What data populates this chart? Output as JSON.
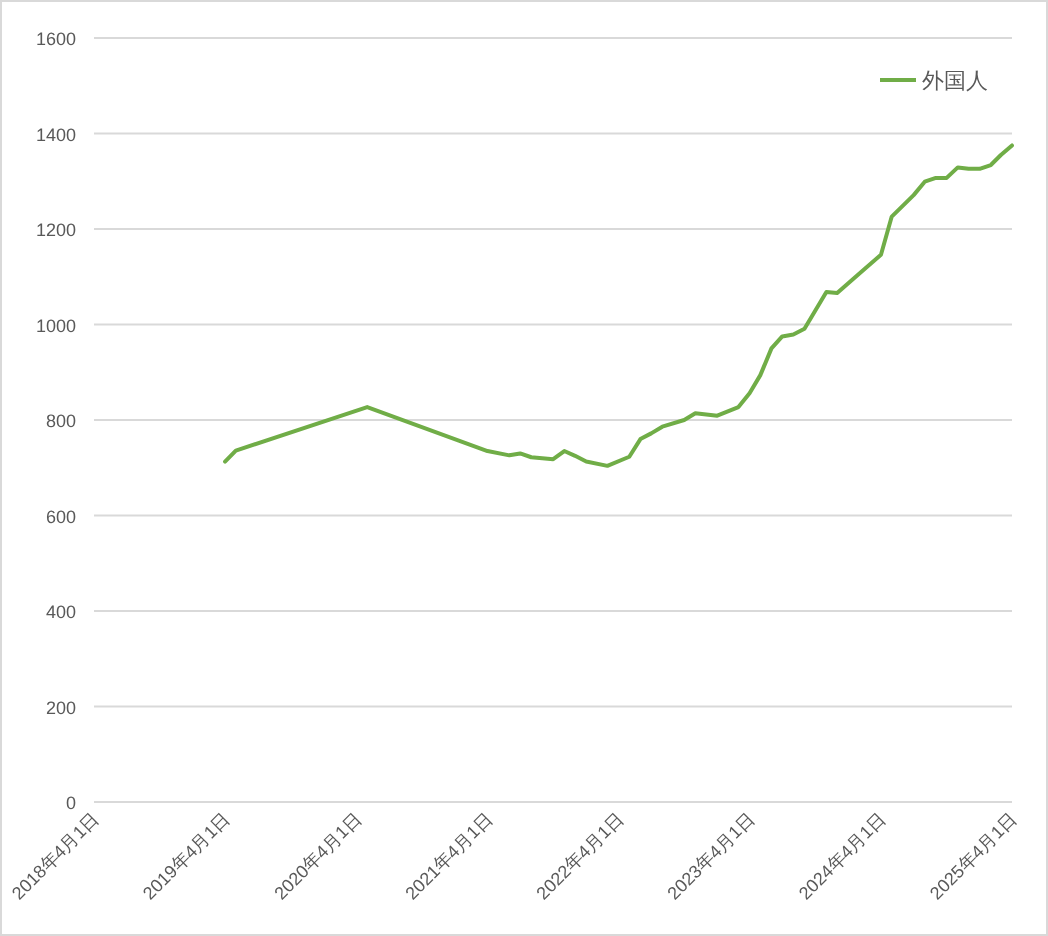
{
  "chart_data": {
    "type": "line",
    "grid": "y",
    "legend": "top right",
    "x": [
      "2019-04",
      "2019-05",
      "2020-05",
      "2021-04",
      "2021-06",
      "2021-07",
      "2021-08",
      "2021-10",
      "2021-11",
      "2021-12",
      "2022-01",
      "2022-03",
      "2022-05",
      "2022-06",
      "2022-07",
      "2022-08",
      "2022-10",
      "2022-11",
      "2023-01",
      "2023-03",
      "2023-04",
      "2023-05",
      "2023-06",
      "2023-07",
      "2023-08",
      "2023-09",
      "2023-11",
      "2023-12",
      "2024-02",
      "2024-04",
      "2024-05",
      "2024-07",
      "2024-08",
      "2024-09",
      "2024-10",
      "2024-11",
      "2024-12",
      "2025-01",
      "2025-02",
      "2025-03",
      "2025-04"
    ],
    "series": [
      {
        "name": "外国人",
        "color": "#70ad47",
        "values": [
          713,
          736,
          827,
          735,
          726,
          730,
          722,
          718,
          735,
          725,
          713,
          704,
          723,
          760,
          772,
          786,
          800,
          814,
          809,
          827,
          856,
          894,
          950,
          975,
          979,
          991,
          1068,
          1066,
          1107,
          1146,
          1226,
          1271,
          1299,
          1307,
          1307,
          1329,
          1326,
          1326,
          1334,
          1355,
          1375
        ]
      }
    ],
    "xlim": [
      "2018-04-01",
      "2025-04-01"
    ],
    "xticks": [
      {
        "value": "2018-04-01",
        "label": "2018年4月1日"
      },
      {
        "value": "2019-04-01",
        "label": "2019年4月1日"
      },
      {
        "value": "2020-04-01",
        "label": "2020年4月1日"
      },
      {
        "value": "2021-04-01",
        "label": "2021年4月1日"
      },
      {
        "value": "2022-04-01",
        "label": "2022年4月1日"
      },
      {
        "value": "2023-04-01",
        "label": "2023年4月1日"
      },
      {
        "value": "2024-04-01",
        "label": "2024年4月1日"
      },
      {
        "value": "2025-04-01",
        "label": "2025年4月1日"
      }
    ],
    "ylim": [
      0,
      1600
    ],
    "yticks": [
      0,
      200,
      400,
      600,
      800,
      1000,
      1200,
      1400,
      1600
    ]
  }
}
